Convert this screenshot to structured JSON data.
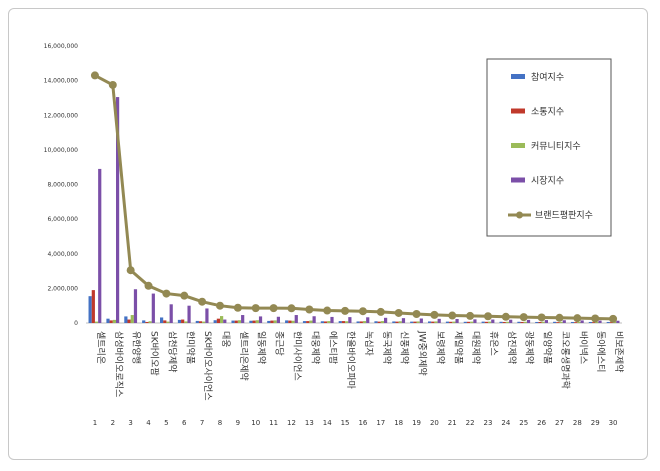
{
  "chart_data": {
    "type": "bar",
    "title": "",
    "xlabel": "",
    "ylabel": "",
    "ylim": [
      0,
      16000000
    ],
    "yticks": [
      "0",
      "2,000,000",
      "4,000,000",
      "6,000,000",
      "8,000,000",
      "10,000,000",
      "12,000,000",
      "14,000,000",
      "16,000,000"
    ],
    "ytick_values": [
      0,
      2000000,
      4000000,
      6000000,
      8000000,
      10000000,
      12000000,
      14000000,
      16000000
    ],
    "grid": false,
    "legend_position": "top-right",
    "categories": [
      "셀트리온",
      "삼성바이오로직스",
      "유한양행",
      "SK바이오팜",
      "삼천당제약",
      "한미약품",
      "SK바이오사이언스",
      "대웅",
      "셀트리온제약",
      "일동제약",
      "종근당",
      "한미사이언스",
      "대웅제약",
      "에스티팜",
      "한올바이오파마",
      "녹십자",
      "동국제약",
      "신풍제약",
      "JW중외제약",
      "보령제약",
      "제일약품",
      "대원제약",
      "휴온스",
      "삼진제약",
      "광동제약",
      "일양약품",
      "코오롱생명과학",
      "바이넥스",
      "동아에스티",
      "비보존제약"
    ],
    "rank_numbers": [
      "1",
      "2",
      "3",
      "4",
      "5",
      "6",
      "7",
      "8",
      "9",
      "10",
      "11",
      "12",
      "13",
      "14",
      "15",
      "16",
      "17",
      "18",
      "19",
      "20",
      "21",
      "22",
      "23",
      "24",
      "25",
      "26",
      "27",
      "28",
      "29",
      "30"
    ],
    "series": [
      {
        "name": "참여지수",
        "color": "#4472c4",
        "kind": "bar",
        "values": [
          1550000,
          250000,
          380000,
          150000,
          320000,
          180000,
          120000,
          160000,
          140000,
          130000,
          120000,
          150000,
          110000,
          100000,
          110000,
          90000,
          100000,
          90000,
          80000,
          90000,
          80000,
          70000,
          80000,
          70000,
          70000,
          60000,
          70000,
          60000,
          60000,
          60000
        ]
      },
      {
        "name": "소통지수",
        "color": "#c0392b",
        "kind": "bar",
        "values": [
          1900000,
          150000,
          200000,
          60000,
          150000,
          200000,
          100000,
          250000,
          140000,
          140000,
          140000,
          140000,
          110000,
          90000,
          110000,
          90000,
          80000,
          80000,
          80000,
          80000,
          70000,
          70000,
          70000,
          60000,
          60000,
          60000,
          50000,
          50000,
          50000,
          50000
        ]
      },
      {
        "name": "커뮤니티지수",
        "color": "#9bbb59",
        "kind": "bar",
        "values": [
          80000,
          180000,
          460000,
          100000,
          80000,
          90000,
          80000,
          400000,
          160000,
          160000,
          150000,
          130000,
          140000,
          110000,
          100000,
          110000,
          110000,
          100000,
          90000,
          90000,
          80000,
          80000,
          80000,
          70000,
          70000,
          70000,
          60000,
          60000,
          60000,
          60000
        ]
      },
      {
        "name": "시장지수",
        "color": "#7b4fa8",
        "kind": "bar",
        "values": [
          8900000,
          13050000,
          1950000,
          1700000,
          1080000,
          1000000,
          840000,
          200000,
          460000,
          380000,
          360000,
          460000,
          390000,
          350000,
          340000,
          330000,
          300000,
          280000,
          260000,
          240000,
          230000,
          210000,
          200000,
          190000,
          180000,
          170000,
          160000,
          150000,
          140000,
          130000
        ]
      },
      {
        "name": "브랜드평판지수",
        "color": "#938953",
        "kind": "line",
        "values": [
          14300000,
          13750000,
          3050000,
          2150000,
          1700000,
          1580000,
          1230000,
          1000000,
          880000,
          860000,
          860000,
          850000,
          780000,
          720000,
          700000,
          680000,
          640000,
          580000,
          520000,
          470000,
          430000,
          410000,
          390000,
          360000,
          340000,
          320000,
          300000,
          280000,
          260000,
          240000
        ]
      }
    ]
  }
}
